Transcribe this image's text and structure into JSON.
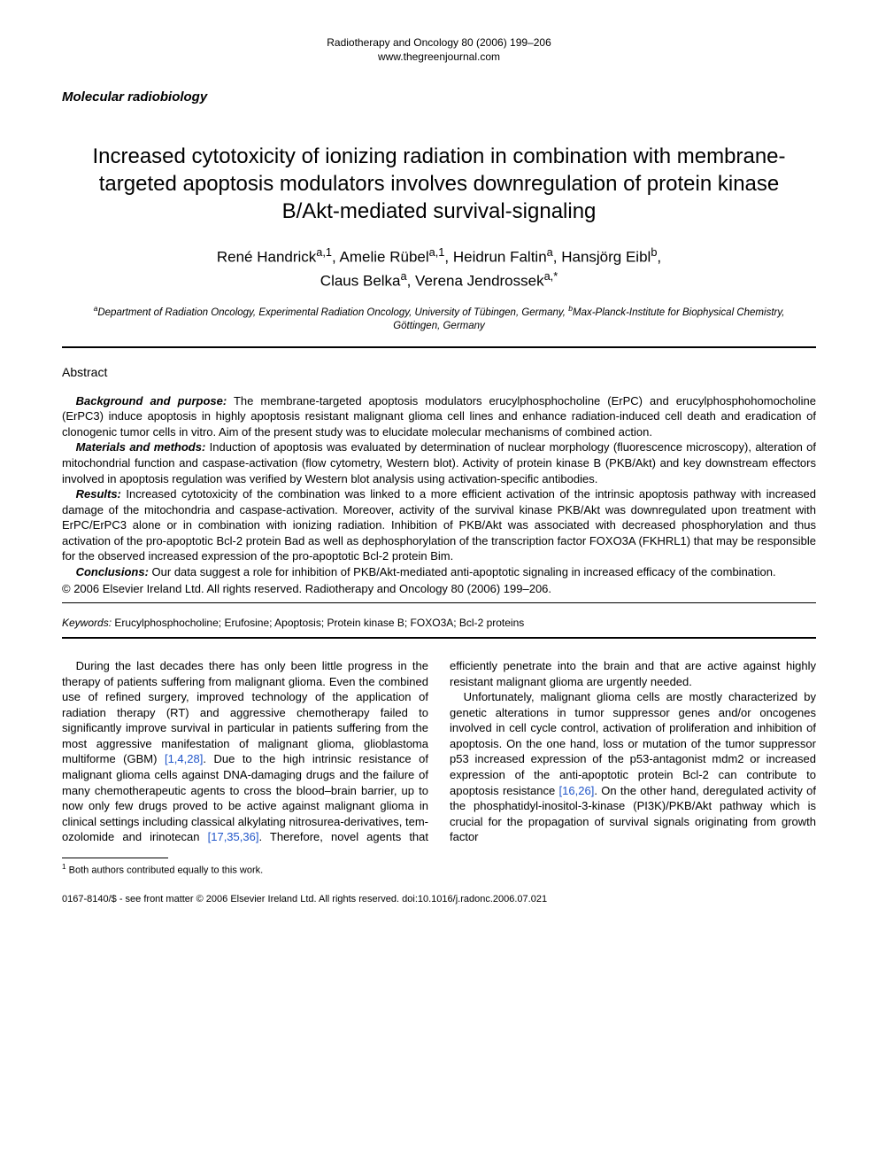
{
  "journal": {
    "citation": "Radiotherapy and Oncology 80 (2006) 199–206",
    "website": "www.thegreenjournal.com"
  },
  "section_tag": "Molecular radiobiology",
  "title": "Increased cytotoxicity of ionizing radiation in combination with membrane-targeted apoptosis modulators involves downregulation of protein kinase B/Akt-mediated survival-signaling",
  "authors_line1": "René Handrick",
  "authors_sup1": "a,1",
  "authors_line2": ", Amelie Rübel",
  "authors_sup2": "a,1",
  "authors_line3": ", Heidrun Faltin",
  "authors_sup3": "a",
  "authors_line4": ", Hansjörg Eibl",
  "authors_sup4": "b",
  "authors_line5": ",",
  "authors_line6": "Claus Belka",
  "authors_sup6": "a",
  "authors_line7": ", Verena Jendrossek",
  "authors_sup7": "a,*",
  "affiliations": {
    "a_sup": "a",
    "a": "Department of Radiation Oncology, Experimental Radiation Oncology, University of Tübingen, Germany, ",
    "b_sup": "b",
    "b": "Max-Planck-Institute for Biophysical Chemistry, Göttingen, Germany"
  },
  "abstract": {
    "heading": "Abstract",
    "paras": [
      {
        "lead": "Background and purpose:",
        "text": " The membrane-targeted apoptosis modulators erucylphosphocholine (ErPC) and erucylphosphohomocholine (ErPC3) induce apoptosis in highly apoptosis resistant malignant glioma cell lines and enhance radiation-induced cell death and eradication of clonogenic tumor cells in vitro. Aim of the present study was to elucidate molecular mechanisms of combined action."
      },
      {
        "lead": "Materials and methods:",
        "text": " Induction of apoptosis was evaluated by determination of nuclear morphology (fluorescence microscopy), alteration of mitochondrial function and caspase-activation (flow cytometry, Western blot). Activity of protein kinase B (PKB/Akt) and key downstream effectors involved in apoptosis regulation was verified by Western blot analysis using activation-specific antibodies."
      },
      {
        "lead": "Results:",
        "text": " Increased cytotoxicity of the combination was linked to a more efficient activation of the intrinsic apoptosis pathway with increased damage of the mitochondria and caspase-activation. Moreover, activity of the survival kinase PKB/Akt was downregulated upon treatment with ErPC/ErPC3 alone or in combination with ionizing radiation. Inhibition of PKB/Akt was associated with decreased phosphorylation and thus activation of the pro-apoptotic Bcl-2 protein Bad as well as dephosphorylation of the transcription factor FOXO3A (FKHRL1) that may be responsible for the observed increased expression of the pro-apoptotic Bcl-2 protein Bim."
      },
      {
        "lead": "Conclusions:",
        "text": " Our data suggest a role for inhibition of PKB/Akt-mediated anti-apoptotic signaling in increased efficacy of the combination."
      }
    ],
    "copyright": "© 2006 Elsevier Ireland Ltd. All rights reserved. Radiotherapy and Oncology 80 (2006) 199–206."
  },
  "keywords": {
    "label": "Keywords:",
    "text": "  Erucylphosphocholine; Erufosine; Apoptosis; Protein kinase B; FOXO3A; Bcl-2 proteins"
  },
  "body": {
    "p1a": "During the last decades there has only been little progress in the therapy of patients suffering from malignant glioma. Even the combined use of refined surgery, improved technology of the application of radiation therapy (RT) and aggressive chemotherapy failed to significantly improve survival in particular in patients suffering from the most aggressive manifestation of malignant glioma, glioblastoma multiforme (GBM) ",
    "c1": "[1,4,28]",
    "p1b": ". Due to the high intrinsic resistance of malignant glioma cells against DNA-damaging drugs and the failure of many chemotherapeutic agents to cross the blood–brain barrier, up to now only few drugs proved to be active against malignant glioma in clinical settings including classical alkylating nitrosurea-derivatives, tem-",
    "p1c": "ozolomide and irinotecan ",
    "c2": "[17,35,36]",
    "p1d": ". Therefore, novel agents that efficiently penetrate into the brain and that are active against highly resistant malignant glioma are urgently needed.",
    "p2a": "Unfortunately, malignant glioma cells are mostly characterized by genetic alterations in tumor suppressor genes and/or oncogenes involved in cell cycle control, activation of proliferation and inhibition of apoptosis. On the one hand, loss or mutation of the tumor suppressor p53 increased expression of the p53-antagonist mdm2 or increased expression of the anti-apoptotic protein Bcl-2 can contribute to apoptosis resistance ",
    "c3": "[16,26]",
    "p2b": ". On the other hand, deregulated activity of the phosphatidyl-inositol-3-kinase (PI3K)/PKB/Akt pathway which is crucial for the propagation of survival signals originating from growth factor"
  },
  "footnote": {
    "num": "1",
    "text": " Both authors contributed equally to this work."
  },
  "footer": "0167-8140/$ - see front matter  © 2006 Elsevier Ireland Ltd. All rights reserved. doi:10.1016/j.radonc.2006.07.021"
}
